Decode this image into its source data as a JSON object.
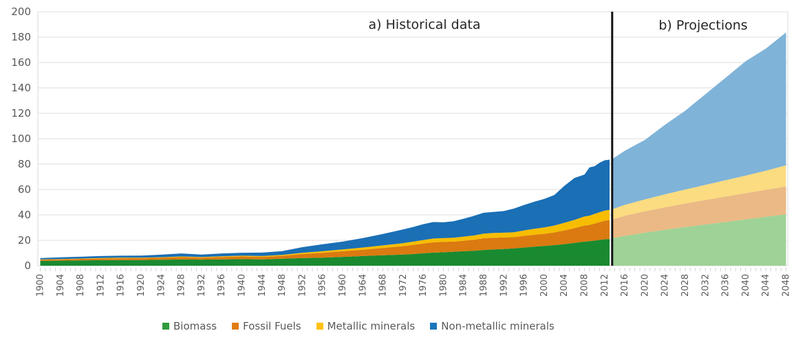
{
  "chart_data": {
    "type": "area",
    "stacked": true,
    "title": "",
    "xlabel": "",
    "ylabel": "",
    "ylim": [
      0,
      200
    ],
    "yticks": [
      0,
      20,
      40,
      60,
      80,
      100,
      120,
      140,
      160,
      180,
      200
    ],
    "xlim": [
      1900,
      2048
    ],
    "xticks": [
      1900,
      1904,
      1908,
      1912,
      1916,
      1920,
      1924,
      1928,
      1932,
      1936,
      1940,
      1944,
      1948,
      1952,
      1956,
      1960,
      1964,
      1968,
      1972,
      1976,
      1980,
      1984,
      1988,
      1992,
      1996,
      2000,
      2004,
      2008,
      2012,
      2016,
      2020,
      2024,
      2028,
      2032,
      2036,
      2040,
      2044,
      2048
    ],
    "grid": true,
    "divider_year": 2013.5,
    "annotations": [
      {
        "text": "a) Historical data",
        "region": "historical"
      },
      {
        "text": "b) Projections",
        "region": "projection"
      }
    ],
    "legend": {
      "placement": "bottom"
    },
    "historical": {
      "x": [
        1900,
        1904,
        1908,
        1912,
        1916,
        1920,
        1924,
        1928,
        1932,
        1936,
        1940,
        1944,
        1948,
        1952,
        1956,
        1960,
        1964,
        1968,
        1972,
        1974,
        1976,
        1978,
        1980,
        1982,
        1984,
        1986,
        1988,
        1990,
        1992,
        1994,
        1996,
        1998,
        2000,
        2002,
        2004,
        2006,
        2008,
        2009,
        2010,
        2011,
        2012,
        2013
      ],
      "series": [
        {
          "name": "Biomass",
          "color": "#1a8a30",
          "values": [
            3.8,
            4.0,
            4.2,
            4.4,
            4.5,
            4.5,
            4.7,
            5.0,
            4.8,
            5.0,
            5.2,
            5.0,
            5.5,
            6.0,
            6.4,
            7.0,
            7.6,
            8.2,
            8.8,
            9.2,
            9.8,
            10.3,
            10.6,
            11.0,
            11.4,
            11.8,
            12.4,
            12.8,
            13.2,
            13.7,
            14.3,
            15.0,
            15.6,
            16.2,
            17.0,
            18.0,
            19.0,
            19.3,
            19.8,
            20.3,
            20.8,
            21.0
          ]
        },
        {
          "name": "Fossil Fuels",
          "color": "#da7a10",
          "values": [
            0.9,
            1.0,
            1.2,
            1.3,
            1.4,
            1.5,
            1.6,
            1.8,
            1.6,
            1.9,
            2.1,
            2.0,
            2.3,
            3.2,
            3.8,
            4.4,
            5.0,
            5.8,
            6.6,
            7.2,
            7.6,
            8.1,
            8.2,
            8.0,
            8.3,
            8.6,
            9.2,
            9.2,
            9.0,
            8.8,
            9.2,
            9.4,
            9.5,
            10.0,
            10.8,
            11.6,
            12.6,
            12.8,
            13.4,
            14.0,
            14.6,
            15.0
          ]
        },
        {
          "name": "Metallic minerals",
          "color": "#f7bd00",
          "values": [
            0.3,
            0.3,
            0.3,
            0.4,
            0.4,
            0.4,
            0.4,
            0.5,
            0.4,
            0.5,
            0.6,
            0.6,
            0.7,
            1.0,
            1.2,
            1.4,
            1.7,
            2.0,
            2.4,
            2.6,
            2.8,
            3.0,
            3.0,
            3.0,
            3.2,
            3.4,
            3.7,
            3.8,
            3.8,
            3.9,
            4.3,
            4.7,
            5.0,
            5.4,
            6.0,
            6.5,
            7.2,
            7.3,
            7.6,
            7.8,
            8.0,
            8.0
          ]
        },
        {
          "name": "Non-metallic minerals",
          "color": "#1a6fb5",
          "values": [
            1.0,
            1.3,
            1.4,
            1.5,
            1.6,
            1.6,
            2.0,
            2.4,
            2.0,
            2.3,
            2.3,
            2.7,
            3.0,
            4.4,
            5.5,
            6.2,
            7.5,
            9.0,
            10.8,
            11.5,
            12.5,
            13.0,
            12.4,
            13.0,
            14.1,
            15.4,
            16.4,
            16.6,
            17.0,
            18.6,
            20.0,
            21.2,
            22.5,
            24.0,
            29.0,
            33.0,
            33.0,
            38.0,
            37.5,
            39.0,
            39.6,
            39.5
          ]
        }
      ]
    },
    "projection": {
      "x": [
        2013.5,
        2016,
        2020,
        2024,
        2028,
        2032,
        2036,
        2040,
        2044,
        2048
      ],
      "series": [
        {
          "name": "Biomass",
          "color": "#9fd296",
          "values": [
            21.5,
            23.5,
            26.0,
            28.3,
            30.5,
            32.5,
            34.5,
            36.5,
            38.5,
            40.5
          ]
        },
        {
          "name": "Fossil Fuels",
          "color": "#ebb985",
          "values": [
            15.0,
            15.8,
            16.8,
            17.7,
            18.5,
            19.3,
            20.0,
            20.7,
            21.3,
            22.0
          ]
        },
        {
          "name": "Metallic minerals",
          "color": "#fbdc80",
          "values": [
            8.0,
            8.6,
            9.4,
            10.2,
            11.0,
            11.8,
            12.8,
            13.8,
            15.0,
            16.5
          ]
        },
        {
          "name": "Non-metallic minerals",
          "color": "#7fb3d8",
          "values": [
            39.5,
            42.6,
            46.8,
            54.8,
            62.0,
            71.4,
            80.7,
            90.0,
            96.2,
            104.7
          ]
        }
      ]
    }
  },
  "legend_items": [
    {
      "label": "Biomass",
      "color": "#2e9a3c"
    },
    {
      "label": "Fossil Fuels",
      "color": "#e07b12"
    },
    {
      "label": "Metallic minerals",
      "color": "#ffc20e"
    },
    {
      "label": "Non-metallic minerals",
      "color": "#1b75bb"
    }
  ]
}
